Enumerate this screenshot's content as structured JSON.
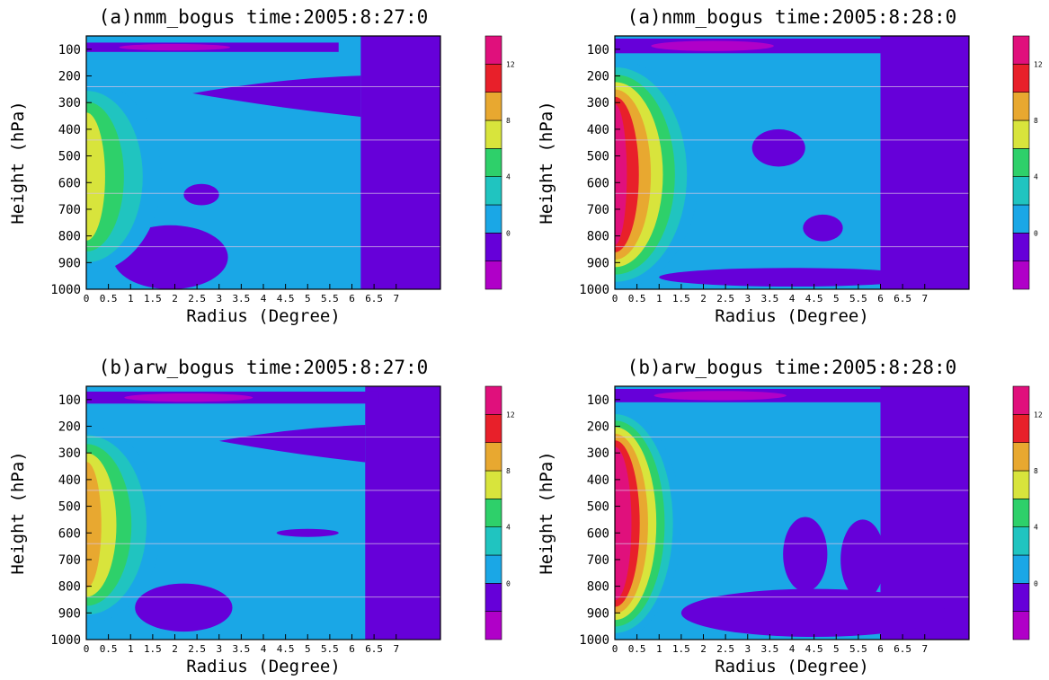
{
  "colors": {
    "levels": [
      "#b000c8",
      "#6600d9",
      "#1aa7e6",
      "#20c4c0",
      "#2ed06a",
      "#d8e43c",
      "#e8a830",
      "#e8202a",
      "#e0107c"
    ],
    "background": "#1aa7e6",
    "gridline": "#d9c4e6"
  },
  "chart_data": [
    {
      "type": "heatmap",
      "title": "(a)nmm_bogus time:2005:8:27:0",
      "xlabel": "Radius (Degree)",
      "ylabel": "Height (hPa)",
      "x_ticks": [
        "0",
        "0.5",
        "1",
        "1.5",
        "2",
        "2.5",
        "3",
        "3.5",
        "4",
        "4.5",
        "5",
        "5.5",
        "6",
        "6.5",
        "7"
      ],
      "y_ticks": [
        "100",
        "200",
        "300",
        "400",
        "500",
        "600",
        "700",
        "800",
        "900",
        "1000"
      ],
      "xlim": [
        0,
        8
      ],
      "ylim": [
        1000,
        50
      ],
      "colorbar_ticks": [
        "12",
        "8",
        "4",
        "0"
      ],
      "core": {
        "peak": 6,
        "top": 215,
        "bottom": 940,
        "width": 1.7
      },
      "upper_band": {
        "x_end": 5.7,
        "p_top": 75,
        "p_bottom": 110
      },
      "right_low_x": 6.2,
      "tongue": {
        "x_start": 2.4,
        "p": 265,
        "thick": 55
      },
      "low_blobs": [
        {
          "x": 1.9,
          "p": 880,
          "rx": 1.3,
          "ry": 120
        },
        {
          "x": 2.6,
          "p": 645,
          "rx": 0.4,
          "ry": 40
        }
      ]
    },
    {
      "type": "heatmap",
      "title": "(a)nmm_bogus time:2005:8:28:0",
      "xlabel": "Radius (Degree)",
      "ylabel": "Height (hPa)",
      "x_ticks": [
        "0",
        "0.5",
        "1",
        "1.5",
        "2",
        "2.5",
        "3",
        "3.5",
        "4",
        "4.5",
        "5",
        "5.5",
        "6",
        "6.5",
        "7"
      ],
      "y_ticks": [
        "100",
        "200",
        "300",
        "400",
        "500",
        "600",
        "700",
        "800",
        "900",
        "1000"
      ],
      "xlim": [
        0,
        8
      ],
      "ylim": [
        1000,
        50
      ],
      "colorbar_ticks": [
        "12",
        "8",
        "4",
        "0"
      ],
      "core": {
        "peak": 12,
        "top": 140,
        "bottom": 1000,
        "width": 1.9
      },
      "upper_band": {
        "x_end": 6.3,
        "p_top": 60,
        "p_bottom": 115
      },
      "right_low_x": 6.0,
      "tongue": null,
      "low_blobs": [
        {
          "x": 3.7,
          "p": 470,
          "rx": 0.6,
          "ry": 70
        },
        {
          "x": 4.7,
          "p": 770,
          "rx": 0.45,
          "ry": 50
        },
        {
          "x": 4.0,
          "p": 955,
          "rx": 3.0,
          "ry": 35
        }
      ]
    },
    {
      "type": "heatmap",
      "title": "(b)arw_bogus time:2005:8:27:0",
      "xlabel": "Radius (Degree)",
      "ylabel": "Height (hPa)",
      "x_ticks": [
        "0",
        "0.5",
        "1",
        "1.5",
        "2",
        "2.5",
        "3",
        "3.5",
        "4",
        "4.5",
        "5",
        "5.5",
        "6",
        "6.5",
        "7"
      ],
      "y_ticks": [
        "100",
        "200",
        "300",
        "400",
        "500",
        "600",
        "700",
        "800",
        "900",
        "1000"
      ],
      "xlim": [
        0,
        8
      ],
      "ylim": [
        1000,
        50
      ],
      "colorbar_ticks": [
        "12",
        "8",
        "4",
        "0"
      ],
      "core": {
        "peak": 8,
        "top": 200,
        "bottom": 940,
        "width": 1.7
      },
      "upper_band": {
        "x_end": 6.6,
        "p_top": 70,
        "p_bottom": 115
      },
      "right_low_x": 6.3,
      "tongue": {
        "x_start": 3.0,
        "p": 255,
        "thick": 50
      },
      "low_blobs": [
        {
          "x": 2.2,
          "p": 880,
          "rx": 1.1,
          "ry": 90
        },
        {
          "x": 5.0,
          "p": 600,
          "rx": 0.7,
          "ry": 15
        }
      ]
    },
    {
      "type": "heatmap",
      "title": "(b)arw_bogus time:2005:8:28:0",
      "xlabel": "Radius (Degree)",
      "ylabel": "Height (hPa)",
      "x_ticks": [
        "0",
        "0.5",
        "1",
        "1.5",
        "2",
        "2.5",
        "3",
        "3.5",
        "4",
        "4.5",
        "5",
        "5.5",
        "6",
        "6.5",
        "7"
      ],
      "y_ticks": [
        "100",
        "200",
        "300",
        "400",
        "500",
        "600",
        "700",
        "800",
        "900",
        "1000"
      ],
      "xlim": [
        0,
        8
      ],
      "ylim": [
        1000,
        50
      ],
      "colorbar_ticks": [
        "12",
        "8",
        "4",
        "0"
      ],
      "core": {
        "peak": 14,
        "top": 130,
        "bottom": 1000,
        "width": 1.5
      },
      "upper_band": {
        "x_end": 6.8,
        "p_top": 60,
        "p_bottom": 110
      },
      "right_low_x": 6.0,
      "tongue": null,
      "low_blobs": [
        {
          "x": 4.5,
          "p": 900,
          "rx": 3.0,
          "ry": 90
        },
        {
          "x": 4.3,
          "p": 680,
          "rx": 0.5,
          "ry": 140
        },
        {
          "x": 5.6,
          "p": 700,
          "rx": 0.5,
          "ry": 150
        }
      ]
    }
  ]
}
